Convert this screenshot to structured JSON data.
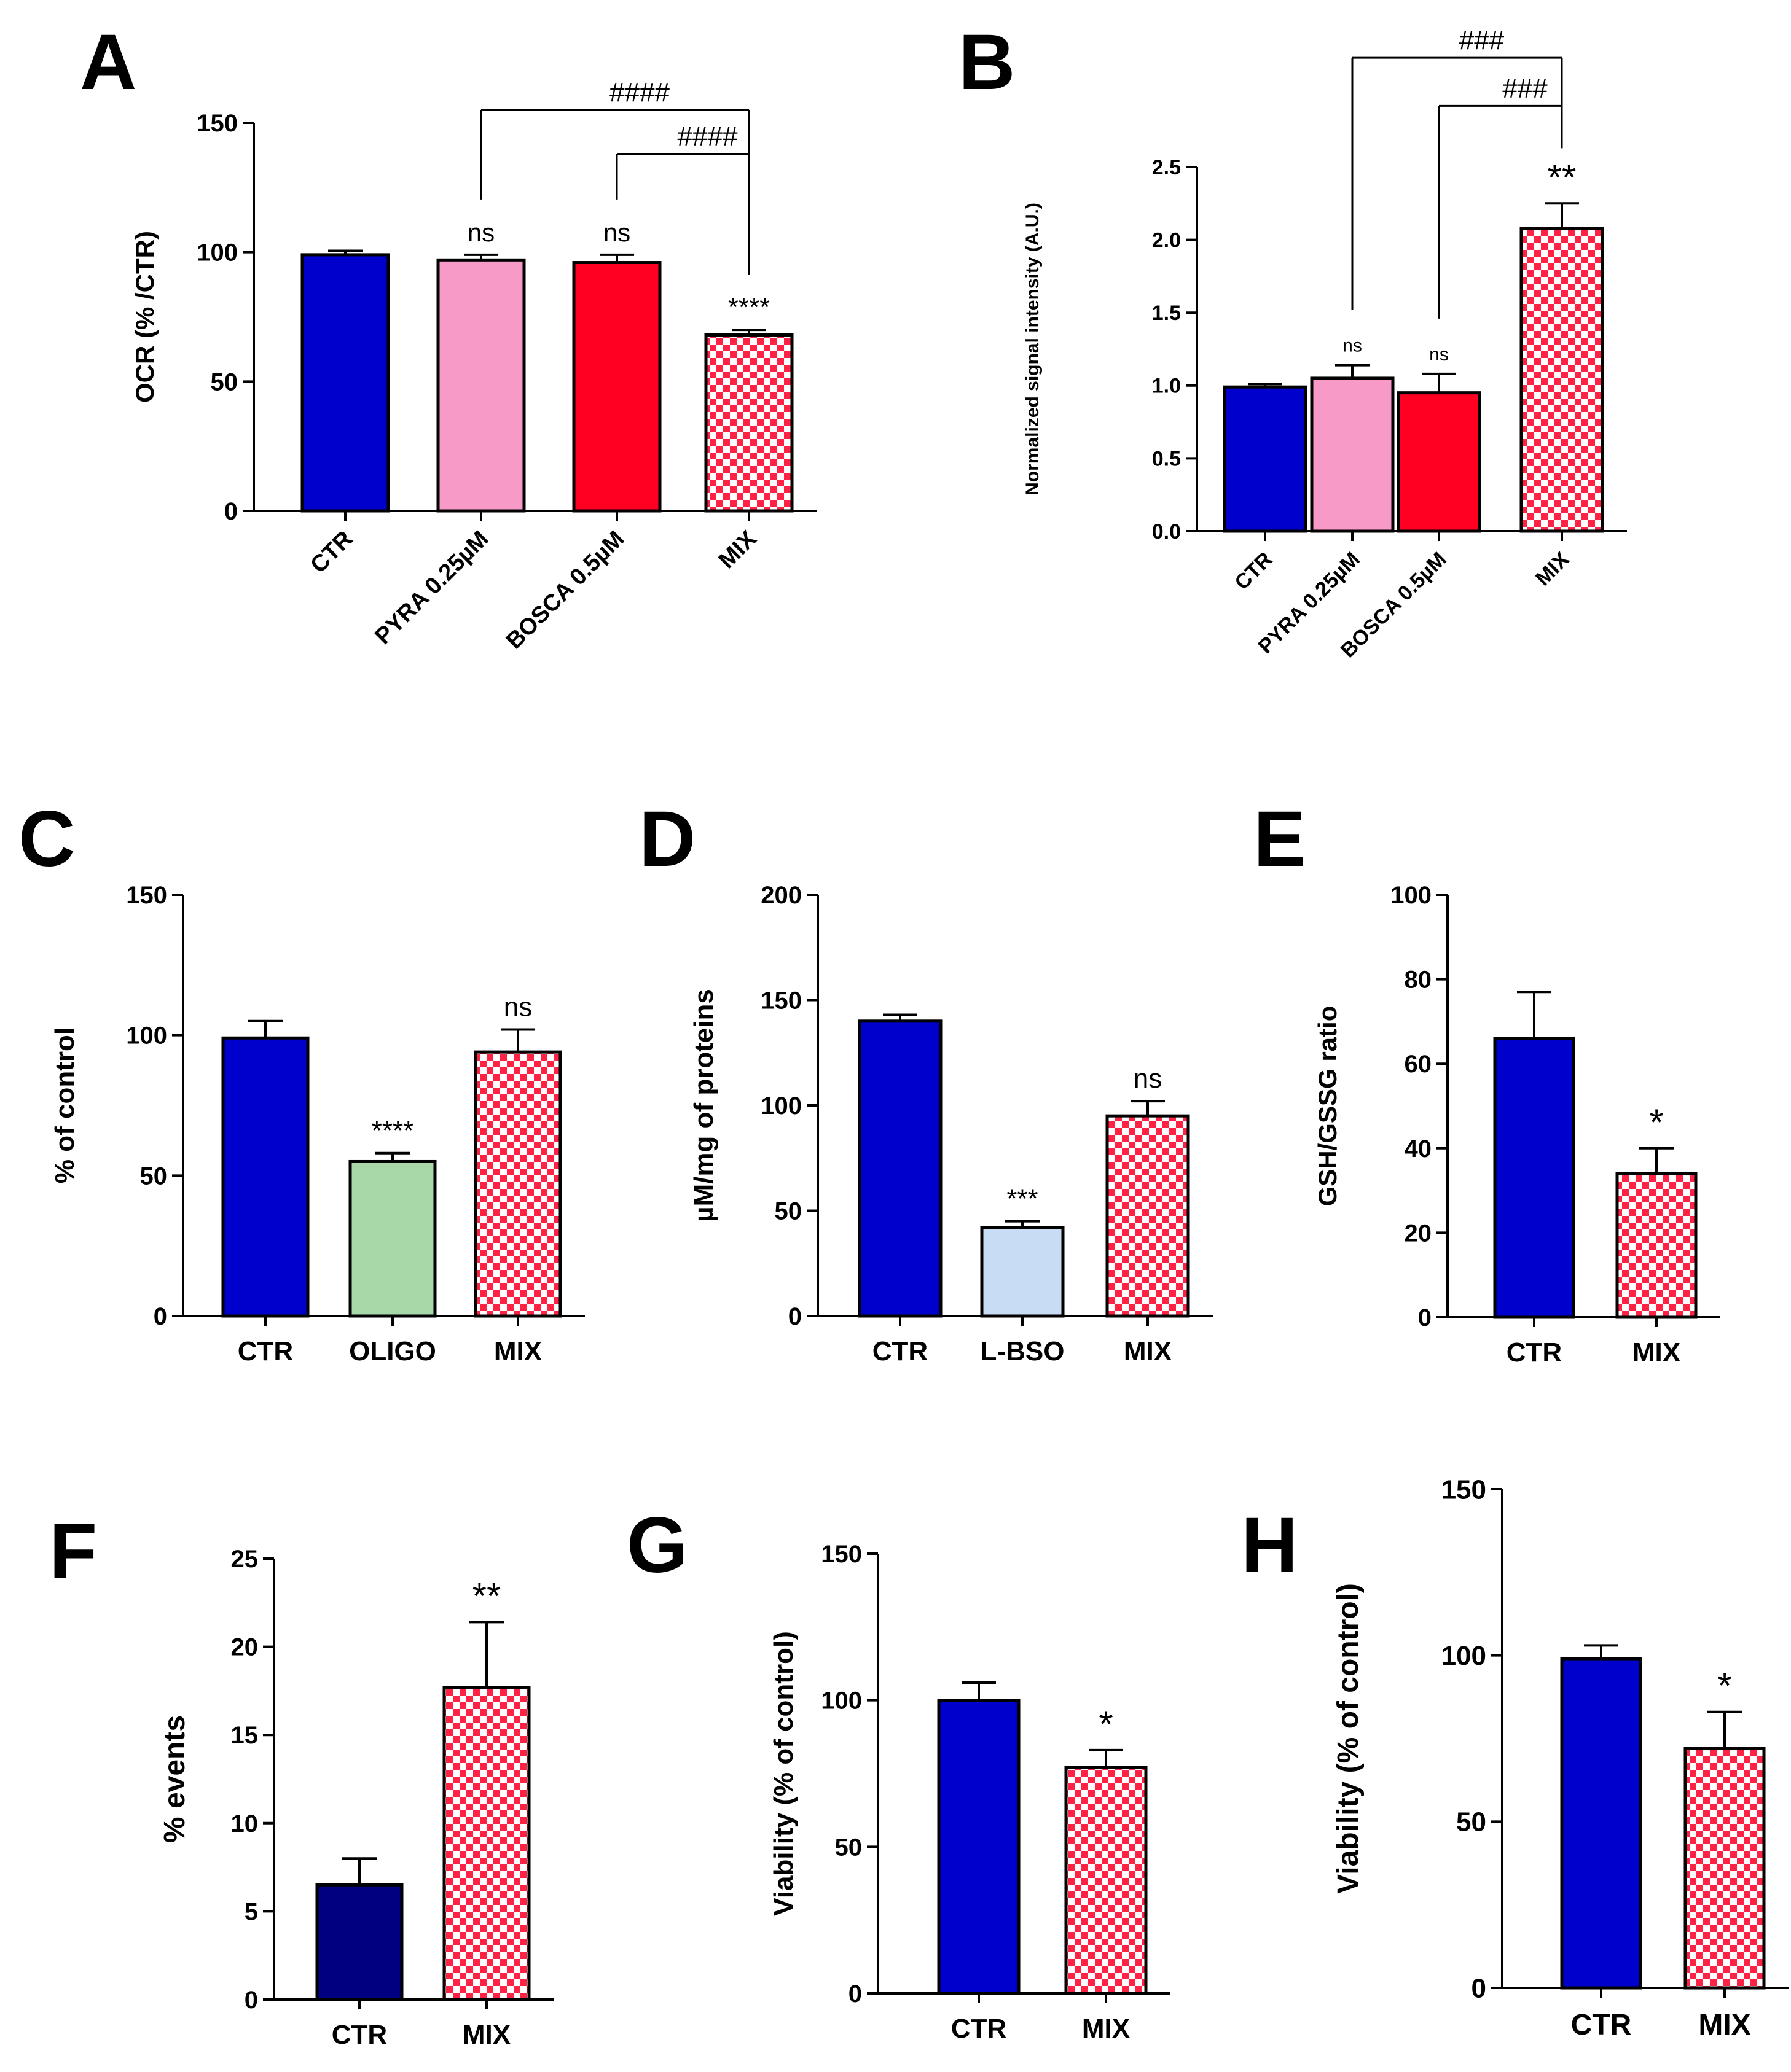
{
  "figure": {
    "panel_count": 8,
    "colors": {
      "blue": "#0000cc",
      "navy": "#000080",
      "pink": "#f79ac8",
      "red": "#ff0022",
      "green": "#a8d8a8",
      "lightblue": "#c8dcf4",
      "check_red": "#ff2244",
      "check_white": "#ffffff"
    }
  },
  "chart_data": [
    {
      "id": "A",
      "type": "bar",
      "letter": "A",
      "ylabel": "OCR (% /CTR)",
      "xlabel": "",
      "ylim": [
        0,
        150
      ],
      "yticks": [
        "0",
        "50",
        "100",
        "150"
      ],
      "categories": [
        "CTR",
        "PYRA 0.25µM",
        "BOSCA 0.5µM",
        "MIX"
      ],
      "rotated_labels": true,
      "values": [
        99,
        97,
        96,
        68
      ],
      "errors": [
        1.5,
        2,
        3,
        2
      ],
      "fills": [
        "blue",
        "pink",
        "red",
        "check"
      ],
      "annotations": [
        "",
        "ns",
        "ns",
        "****"
      ],
      "comparisons": [
        {
          "from": 1,
          "to": 3,
          "label": "####",
          "level": 155
        },
        {
          "from": 2,
          "to": 3,
          "label": "####",
          "level": 138
        }
      ]
    },
    {
      "id": "B",
      "type": "bar",
      "letter": "B",
      "ylabel": "Normalized signal intensity (A.U.)",
      "xlabel": "",
      "ylim": [
        0,
        2.5
      ],
      "yticks": [
        "0.0",
        "0.5",
        "1.0",
        "1.5",
        "2.0",
        "2.5"
      ],
      "categories": [
        "CTR",
        "PYRA 0.25µM",
        "BOSCA 0.5µM",
        "MIX"
      ],
      "rotated_labels": true,
      "values": [
        0.99,
        1.05,
        0.95,
        2.08
      ],
      "errors": [
        0.02,
        0.09,
        0.13,
        0.17
      ],
      "fills": [
        "blue",
        "pink",
        "red",
        "check"
      ],
      "annotations": [
        "",
        "ns",
        "ns",
        "**"
      ],
      "comparisons": [
        {
          "from": 1,
          "to": 3,
          "label": "###",
          "level": 3.25
        },
        {
          "from": 2,
          "to": 3,
          "label": "###",
          "level": 2.92
        }
      ]
    },
    {
      "id": "C",
      "type": "bar",
      "letter": "C",
      "ylabel": "% of control",
      "xlabel": "",
      "ylim": [
        0,
        150
      ],
      "yticks": [
        "0",
        "50",
        "100",
        "150"
      ],
      "categories": [
        "CTR",
        "OLIGO",
        "MIX"
      ],
      "rotated_labels": false,
      "values": [
        99,
        55,
        94
      ],
      "errors": [
        6,
        3,
        8
      ],
      "fills": [
        "blue",
        "green",
        "check"
      ],
      "annotations": [
        "",
        "****",
        "ns"
      ],
      "comparisons": []
    },
    {
      "id": "D",
      "type": "bar",
      "letter": "D",
      "ylabel": "µM/mg of proteins",
      "xlabel": "",
      "ylim": [
        0,
        200
      ],
      "yticks": [
        "0",
        "50",
        "100",
        "150",
        "200"
      ],
      "categories": [
        "CTR",
        "L-BSO",
        "MIX"
      ],
      "rotated_labels": false,
      "values": [
        140,
        42,
        95
      ],
      "errors": [
        3,
        3,
        7
      ],
      "fills": [
        "blue",
        "lightblue",
        "check"
      ],
      "annotations": [
        "",
        "***",
        "ns"
      ],
      "comparisons": []
    },
    {
      "id": "E",
      "type": "bar",
      "letter": "E",
      "ylabel": "GSH/GSSG ratio",
      "xlabel": "",
      "ylim": [
        0,
        100
      ],
      "yticks": [
        "0",
        "20",
        "40",
        "60",
        "80",
        "100"
      ],
      "categories": [
        "CTR",
        "MIX"
      ],
      "rotated_labels": false,
      "values": [
        66,
        34
      ],
      "errors": [
        11,
        6
      ],
      "fills": [
        "blue",
        "check"
      ],
      "annotations": [
        "",
        "*"
      ],
      "comparisons": []
    },
    {
      "id": "F",
      "type": "bar",
      "letter": "F",
      "ylabel": "% events",
      "xlabel": "",
      "ylim": [
        0,
        25
      ],
      "yticks": [
        "0",
        "5",
        "10",
        "15",
        "20",
        "25"
      ],
      "categories": [
        "CTR",
        "MIX"
      ],
      "rotated_labels": false,
      "values": [
        6.5,
        17.7
      ],
      "errors": [
        1.5,
        3.7
      ],
      "fills": [
        "navy",
        "check"
      ],
      "annotations": [
        "",
        "**"
      ],
      "comparisons": []
    },
    {
      "id": "G",
      "type": "bar",
      "letter": "G",
      "ylabel": "Viability (%  of control)",
      "xlabel": "",
      "ylim": [
        0,
        150
      ],
      "yticks": [
        "0",
        "50",
        "100",
        "150"
      ],
      "categories": [
        "CTR",
        "MIX"
      ],
      "rotated_labels": false,
      "values": [
        100,
        77
      ],
      "errors": [
        6,
        6
      ],
      "fills": [
        "blue",
        "check"
      ],
      "annotations": [
        "",
        "*"
      ],
      "comparisons": []
    },
    {
      "id": "H",
      "type": "bar",
      "letter": "H",
      "ylabel": "Viability (%  of control)",
      "xlabel": "",
      "ylim": [
        0,
        150
      ],
      "yticks": [
        "0",
        "50",
        "100",
        "150"
      ],
      "categories": [
        "CTR",
        "MIX"
      ],
      "rotated_labels": false,
      "values": [
        99,
        72
      ],
      "errors": [
        4,
        11
      ],
      "fills": [
        "blue",
        "check"
      ],
      "annotations": [
        "",
        "*"
      ],
      "comparisons": []
    }
  ]
}
